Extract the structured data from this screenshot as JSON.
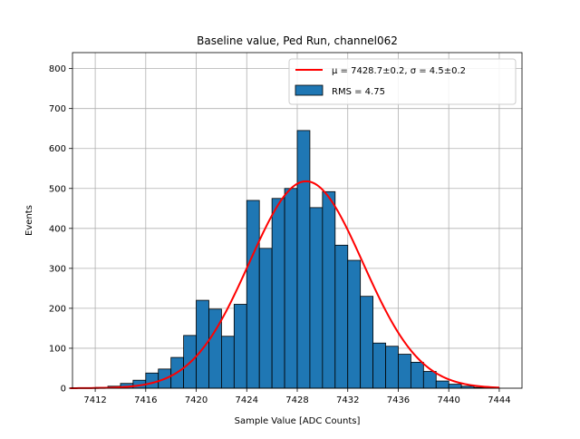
{
  "chart_data": {
    "type": "bar",
    "title": "Baseline value, Ped Run, channel062",
    "xlabel": "Sample Value [ADC Counts]",
    "ylabel": "Events",
    "xlim": [
      7410.2,
      7445.8
    ],
    "ylim": [
      0,
      840
    ],
    "grid": true,
    "legend_position": "top-right",
    "bar_color": "#1f77b4",
    "bar_edge_color": "#000000",
    "fit_color": "#ff0000",
    "xticks": [
      7412,
      7416,
      7420,
      7424,
      7428,
      7432,
      7436,
      7440,
      7444
    ],
    "xtick_labels": [
      "7412",
      "7416",
      "7420",
      "7424",
      "7428",
      "7432",
      "7436",
      "7440",
      "7444"
    ],
    "yticks": [
      0,
      100,
      200,
      300,
      400,
      500,
      600,
      700,
      800
    ],
    "ytick_labels": [
      "0",
      "100",
      "200",
      "300",
      "400",
      "500",
      "600",
      "700",
      "800"
    ],
    "bin_width": 1,
    "bin_starts": [
      7411,
      7412,
      7413,
      7414,
      7415,
      7416,
      7417,
      7418,
      7419,
      7420,
      7421,
      7422,
      7423,
      7424,
      7425,
      7426,
      7427,
      7428,
      7429,
      7430,
      7431,
      7432,
      7433,
      7434,
      7435,
      7436,
      7437,
      7438,
      7439,
      7440,
      7441,
      7442,
      7443
    ],
    "values": [
      1,
      2,
      5,
      12,
      20,
      38,
      48,
      77,
      132,
      220,
      198,
      130,
      210,
      470,
      350,
      475,
      500,
      645,
      452,
      492,
      358,
      320,
      230,
      113,
      105,
      85,
      65,
      42,
      18,
      10,
      5,
      2,
      1
    ],
    "series": [
      {
        "name": "RMS = 4.75",
        "kind": "histogram"
      },
      {
        "name": "$\\mu = 7428.7\\pm0.2$, $\\sigma = 4.5\\pm0.2$",
        "kind": "gaussian_fit",
        "mu": 7428.7,
        "sigma": 4.5,
        "amplitude": 518,
        "x_range": [
          7410,
          7444
        ]
      }
    ],
    "legend": {
      "fit_prefix": "μ = 7428.7±0.2, ",
      "fit_suffix": "σ = 4.5±0.2",
      "hist_label": "RMS = 4.75"
    }
  }
}
